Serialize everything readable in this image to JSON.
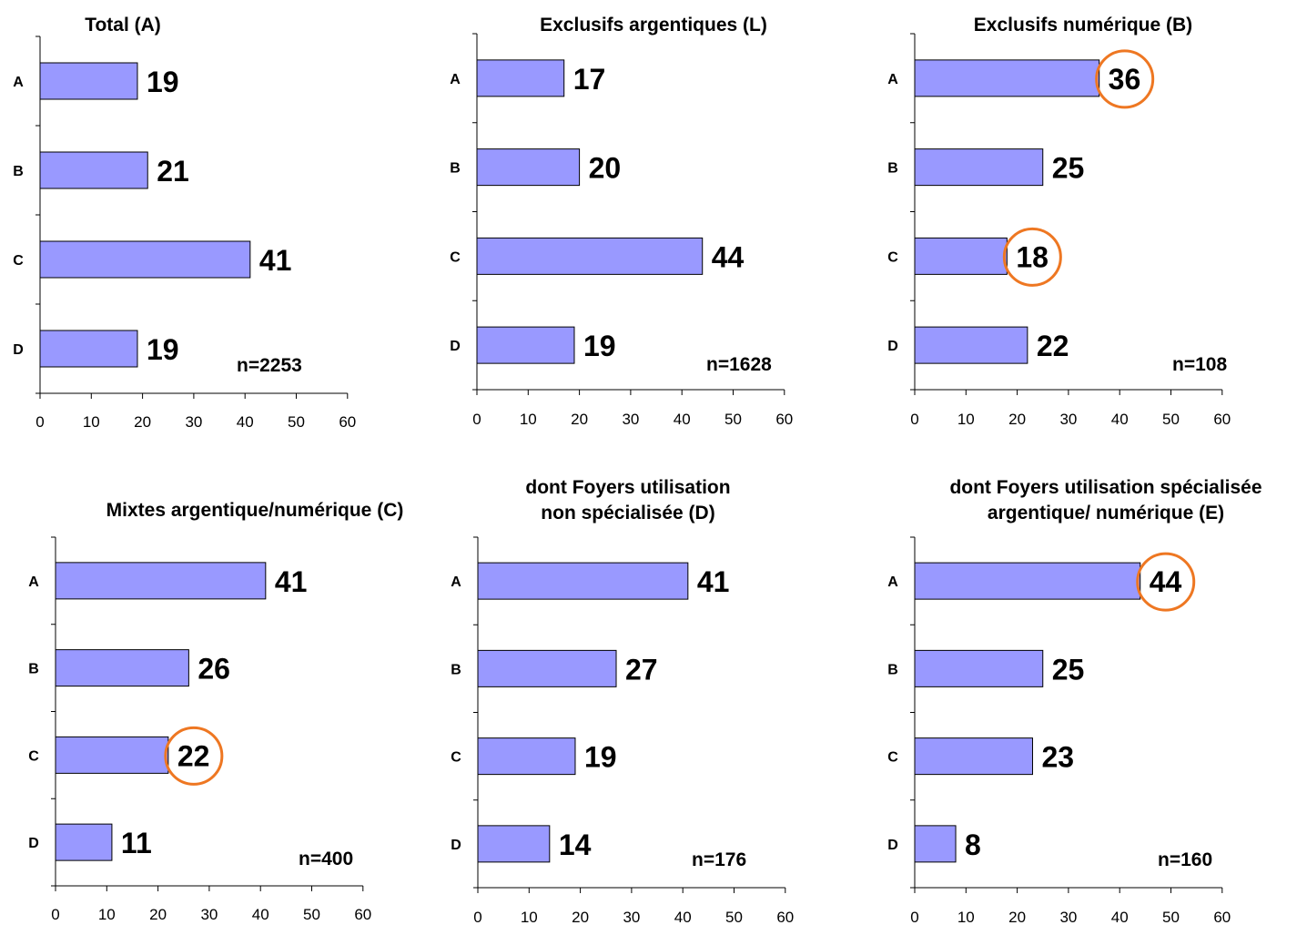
{
  "colors": {
    "bar": "#9999ff",
    "bar_stroke": "#000000",
    "highlight": "#ee7722"
  },
  "chart_data": [
    {
      "type": "bar",
      "orientation": "horizontal",
      "title": "Total (A)",
      "categories": [
        "A",
        "B",
        "C",
        "D"
      ],
      "values": [
        19,
        21,
        41,
        19
      ],
      "xlim": [
        0,
        60
      ],
      "xticks": [
        "0",
        "10",
        "20",
        "30",
        "40",
        "50",
        "60"
      ],
      "n_label": "n=2253",
      "highlighted": []
    },
    {
      "type": "bar",
      "orientation": "horizontal",
      "title": "Exclusifs argentiques (L)",
      "categories": [
        "A",
        "B",
        "C",
        "D"
      ],
      "values": [
        17,
        20,
        44,
        19
      ],
      "xlim": [
        0,
        60
      ],
      "xticks": [
        "0",
        "10",
        "20",
        "30",
        "40",
        "50",
        "60"
      ],
      "n_label": "n=1628",
      "highlighted": []
    },
    {
      "type": "bar",
      "orientation": "horizontal",
      "title": "Exclusifs numérique (B)",
      "categories": [
        "A",
        "B",
        "C",
        "D"
      ],
      "values": [
        36,
        25,
        18,
        22
      ],
      "xlim": [
        0,
        60
      ],
      "xticks": [
        "0",
        "10",
        "20",
        "30",
        "40",
        "50",
        "60"
      ],
      "n_label": "n=108",
      "highlighted": [
        0,
        2
      ]
    },
    {
      "type": "bar",
      "orientation": "horizontal",
      "title": "Mixtes argentique/numérique (C)",
      "categories": [
        "A",
        "B",
        "C",
        "D"
      ],
      "values": [
        41,
        26,
        22,
        11
      ],
      "xlim": [
        0,
        60
      ],
      "xticks": [
        "0",
        "10",
        "20",
        "30",
        "40",
        "50",
        "60"
      ],
      "n_label": "n=400",
      "highlighted": [
        2
      ]
    },
    {
      "type": "bar",
      "orientation": "horizontal",
      "title": "dont Foyers utilisation\nnon spécialisée (D)",
      "categories": [
        "A",
        "B",
        "C",
        "D"
      ],
      "values": [
        41,
        27,
        19,
        14
      ],
      "xlim": [
        0,
        60
      ],
      "xticks": [
        "0",
        "10",
        "20",
        "30",
        "40",
        "50",
        "60"
      ],
      "n_label": "n=176",
      "highlighted": []
    },
    {
      "type": "bar",
      "orientation": "horizontal",
      "title": "dont Foyers utilisation spécialisée\nargentique/ numérique (E)",
      "categories": [
        "A",
        "B",
        "C",
        "D"
      ],
      "values": [
        44,
        25,
        23,
        8
      ],
      "xlim": [
        0,
        60
      ],
      "xticks": [
        "0",
        "10",
        "20",
        "30",
        "40",
        "50",
        "60"
      ],
      "n_label": "n=160",
      "highlighted": [
        0
      ]
    }
  ]
}
